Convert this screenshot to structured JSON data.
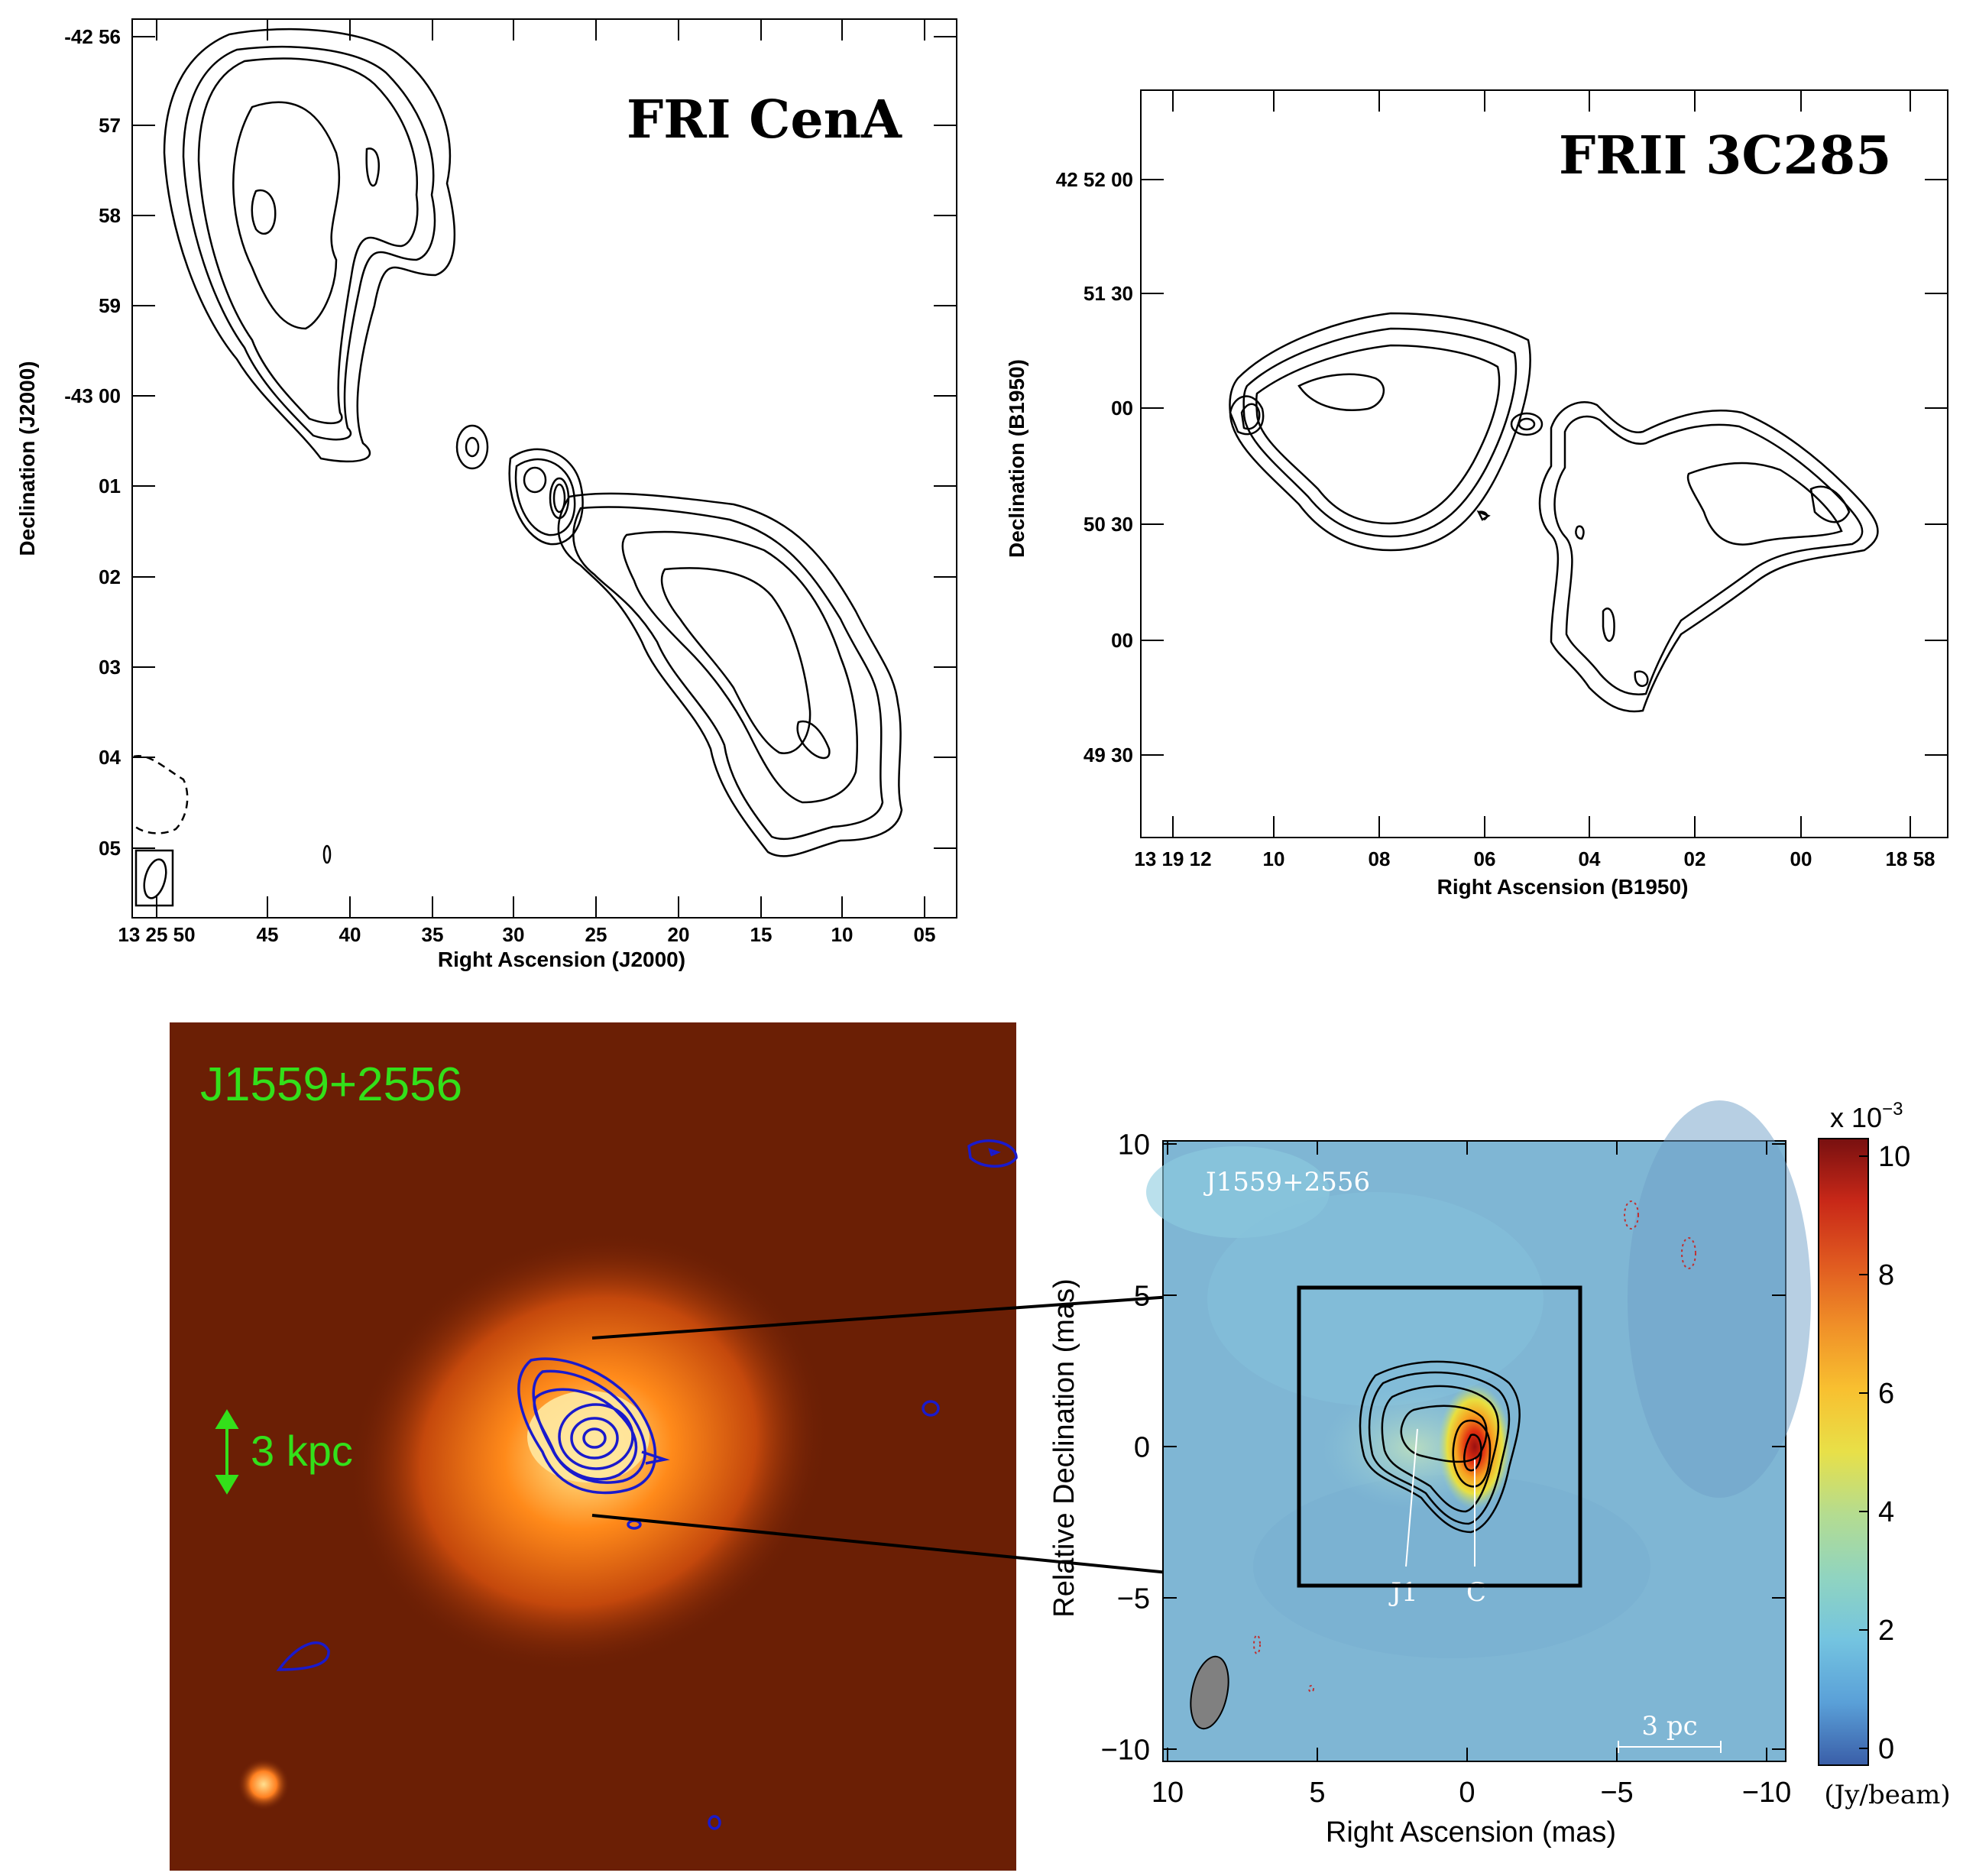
{
  "panels": {
    "cena": {
      "title": "FRI CenA",
      "xlabel": "Right Ascension (J2000)",
      "ylabel": "Declination (J2000)",
      "xticks": [
        "13 25 50",
        "45",
        "40",
        "35",
        "30",
        "25",
        "20",
        "15",
        "10",
        "05"
      ],
      "yticks": [
        "-42 56",
        "57",
        "58",
        "59",
        "-43 00",
        "01",
        "02",
        "03",
        "04",
        "05"
      ]
    },
    "c285": {
      "title": "FRII 3C285",
      "xlabel": "Right Ascension (B1950)",
      "ylabel": "Declination (B1950)",
      "xticks": [
        "13 19 12",
        "10",
        "08",
        "06",
        "04",
        "02",
        "00",
        "18 58"
      ],
      "yticks": [
        "42 52 00",
        "51 30",
        "00",
        "50 30",
        "00",
        "49 30"
      ]
    },
    "optical": {
      "source_label": "J1559+2556",
      "scale_label": "3 kpc",
      "colors": {
        "background": "#6b1f05",
        "core": "#ffd27a",
        "contours": "#1a1acc",
        "label": "#33e01a"
      }
    },
    "vlbi": {
      "source_label": "J1559+2556",
      "xlabel": "Right Ascension (mas)",
      "ylabel": "Relative Declination (mas)",
      "xticks": [
        "10",
        "5",
        "0",
        "−5",
        "−10"
      ],
      "yticks": [
        "10",
        "5",
        "0",
        "−5",
        "−10"
      ],
      "components": [
        "J1",
        "C"
      ],
      "scale_label": "3 pc",
      "colorbar": {
        "exponent_label": "x 10",
        "exponent_power": "−3",
        "unit_label": "(Jy/beam)",
        "ticks": [
          "10",
          "8",
          "6",
          "4",
          "2",
          "0"
        ]
      }
    }
  }
}
